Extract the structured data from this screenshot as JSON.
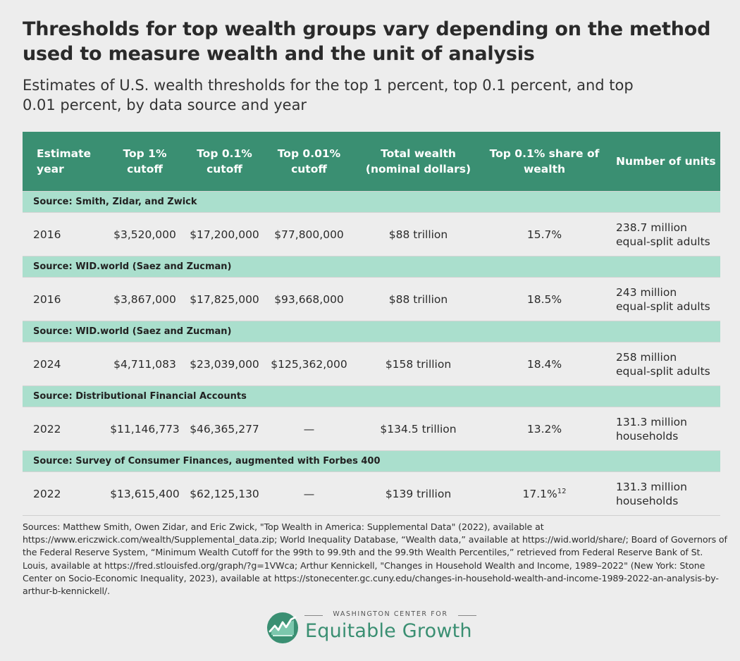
{
  "title": "Thresholds for top wealth groups vary depending on the method used to measure wealth and the unit of analysis",
  "subtitle": "Estimates of U.S. wealth thresholds for the top 1 percent, top 0.1 percent, and top 0.01 percent, by data source and year",
  "table": {
    "headers": [
      "Estimate year",
      "Top 1% cutoff",
      "Top 0.1% cutoff",
      "Top 0.01% cutoff",
      "Total wealth (nominal dollars)",
      "Top 0.1% share of wealth",
      "Number of units"
    ],
    "sections": [
      {
        "source": "Source: Smith, Zidar, and Zwick",
        "row": {
          "year": "2016",
          "top1": "$3,520,000",
          "top01": "$17,200,000",
          "top001": "$77,800,000",
          "total": "$88 trillion",
          "share": "15.7%",
          "share_note": "",
          "units_1": "238.7 million",
          "units_2": "equal-split adults"
        }
      },
      {
        "source": "Source: WID.world (Saez and Zucman)",
        "row": {
          "year": "2016",
          "top1": "$3,867,000",
          "top01": "$17,825,000",
          "top001": "$93,668,000",
          "total": "$88 trillion",
          "share": "18.5%",
          "share_note": "",
          "units_1": "243 million",
          "units_2": "equal-split adults"
        }
      },
      {
        "source": "Source: WID.world (Saez and Zucman)",
        "row": {
          "year": "2024",
          "top1": "$4,711,083",
          "top01": "$23,039,000",
          "top001": "$125,362,000",
          "total": "$158 trillion",
          "share": "18.4%",
          "share_note": "",
          "units_1": "258 million",
          "units_2": "equal-split adults"
        }
      },
      {
        "source": "Source: Distributional Financial Accounts",
        "row": {
          "year": "2022",
          "top1": "$11,146,773",
          "top01": "$46,365,277",
          "top001": "—",
          "total": "$134.5 trillion",
          "share": "13.2%",
          "share_note": "",
          "units_1": "131.3 million",
          "units_2": "households"
        }
      },
      {
        "source": "Source: Survey of Consumer Finances, augmented with Forbes 400",
        "row": {
          "year": "2022",
          "top1": "$13,615,400",
          "top01": "$62,125,130",
          "top001": "—",
          "total": "$139 trillion",
          "share": "17.1%",
          "share_note": "12",
          "units_1": "131.3 million",
          "units_2": "households"
        }
      }
    ]
  },
  "sources_text": "Sources: Matthew Smith, Owen Zidar, and Eric Zwick, \"Top Wealth in America: Supplemental Data\" (2022), available at https://www.ericzwick.com/wealth/Supplemental_data.zip; World Inequality Database, “Wealth data,” available at https://wid.world/share/; Board of Governors of the Federal Reserve System, “Minimum Wealth Cutoff for the 99th to 99.9th and the 99.9th Wealth Percentiles,” retrieved from Federal Reserve Bank of St. Louis, available at https://fred.stlouisfed.org/graph/?g=1VWca; Arthur Kennickell, \"Changes in Household Wealth and Income, 1989–2022\" (New York: Stone Center on Socio-Economic Inequality, 2023), available at https://stonecenter.gc.cuny.edu/changes-in-household-wealth-and-income-1989-2022-an-analysis-by-arthur-b-kennickell/.",
  "logo": {
    "top_line": "WASHINGTON CENTER FOR",
    "name": "Equitable Growth",
    "icon": "growth-chart-circle-icon",
    "color": "#3a8f72"
  },
  "colors": {
    "header_bg": "#3a8f72",
    "source_bg": "#aadfcd",
    "page_bg": "#ededed"
  }
}
